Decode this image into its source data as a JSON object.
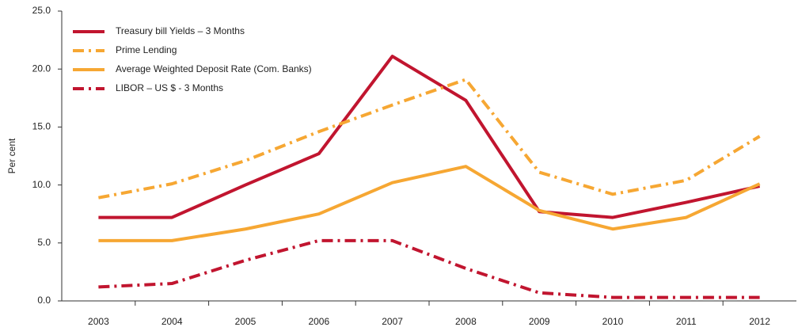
{
  "chart_data": {
    "type": "line",
    "y_label": "Per cent",
    "categories": [
      "2003",
      "2004",
      "2005",
      "2006",
      "2007",
      "2008",
      "2009",
      "2010",
      "2011",
      "2012"
    ],
    "series": [
      {
        "name": "Treasury bill Yields – 3 Months",
        "color": "#c1152f",
        "dash": "solid",
        "values": [
          7.2,
          7.2,
          10.0,
          12.7,
          21.1,
          17.3,
          7.7,
          7.2,
          8.5,
          9.9
        ]
      },
      {
        "name": "Prime Lending",
        "color": "#f6a733",
        "dash": "dashdot",
        "values": [
          8.9,
          10.1,
          12.1,
          14.6,
          16.9,
          19.1,
          11.1,
          9.2,
          10.4,
          14.2
        ]
      },
      {
        "name": "Average Weighted Deposit Rate (Com. Banks)",
        "color": "#f6a733",
        "dash": "solid",
        "values": [
          5.2,
          5.2,
          6.2,
          7.5,
          10.2,
          11.6,
          7.8,
          6.2,
          7.2,
          10.1
        ]
      },
      {
        "name": "LIBOR – US $ - 3 Months",
        "color": "#c1152f",
        "dash": "dashdot",
        "values": [
          1.2,
          1.5,
          3.5,
          5.2,
          5.2,
          2.8,
          0.7,
          0.3,
          0.3,
          0.3
        ]
      }
    ],
    "ylim": [
      0,
      25
    ],
    "yticks": [
      {
        "value": 0,
        "label": "0.0"
      },
      {
        "value": 5,
        "label": "5.0"
      },
      {
        "value": 10,
        "label": "10.0"
      },
      {
        "value": 15,
        "label": "15.0"
      },
      {
        "value": 20,
        "label": "20.0"
      },
      {
        "value": 25,
        "label": "25.0"
      }
    ],
    "legend": "top-left"
  }
}
